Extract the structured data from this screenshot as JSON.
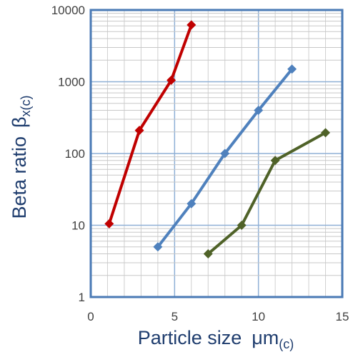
{
  "chart_data": {
    "type": "line",
    "title": "",
    "xlabel": "Particle size",
    "xlabel_unit": "μm",
    "xlabel_unit_sub": "(c)",
    "ylabel": "Beta ratio",
    "ylabel_symbol": "β",
    "ylabel_symbol_sub": "x(c)",
    "xlim": [
      0,
      15
    ],
    "ylim": [
      1,
      10000
    ],
    "yscale": "log",
    "xticks": [
      0,
      5,
      10,
      15
    ],
    "xtick_labels": [
      "0",
      "5",
      "10",
      "15"
    ],
    "yticks": [
      1,
      10,
      100,
      1000,
      10000
    ],
    "ytick_labels": [
      "1",
      "10",
      "100",
      "1000",
      "10000"
    ],
    "grid": true,
    "legend": "none",
    "series": [
      {
        "color": "#c00000",
        "x": [
          1.1,
          2.9,
          4.8,
          6.0
        ],
        "y": [
          10.5,
          210,
          1050,
          6200
        ]
      },
      {
        "color": "#4f81bd",
        "x": [
          4.0,
          6.0,
          8.0,
          10.0,
          12.0
        ],
        "y": [
          5,
          20,
          100,
          400,
          1500
        ]
      },
      {
        "color": "#4f6228",
        "x": [
          7.0,
          9.0,
          11.0,
          14.0
        ],
        "y": [
          4,
          10,
          80,
          195
        ]
      }
    ]
  }
}
